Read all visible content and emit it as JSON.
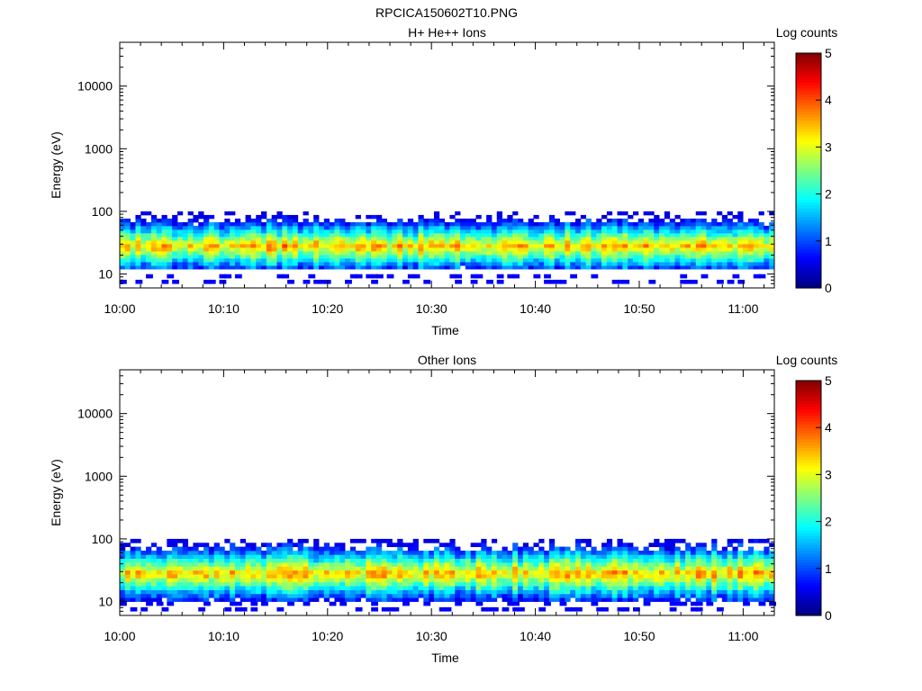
{
  "figure_title": "RPCICA150602T10.PNG",
  "colormap": [
    "#00007f",
    "#0000ff",
    "#007fff",
    "#00ffff",
    "#7fff7f",
    "#ffff00",
    "#ff7f00",
    "#ff0000",
    "#7f0000"
  ],
  "chart_data": [
    {
      "type": "heatmap",
      "title": "H+ He++ Ions",
      "xlabel": "Time",
      "ylabel": "Energy (eV)",
      "y_scale": "log",
      "ylim": [
        6,
        50000
      ],
      "x_ticks": [
        "10:00",
        "10:10",
        "10:20",
        "10:30",
        "10:40",
        "10:50",
        "11:00"
      ],
      "xlim": [
        "10:00",
        "11:03"
      ],
      "y_ticks": [
        "10",
        "100",
        "1000",
        "10000"
      ],
      "colorbar": {
        "label": "Log counts",
        "range": [
          0,
          5
        ],
        "ticks": [
          "0",
          "1",
          "2",
          "3",
          "4",
          "5"
        ]
      },
      "grid": false,
      "legend": "none",
      "signal_energy_range_eV": [
        12,
        100
      ],
      "peak_log_counts": 4.5,
      "peak_energy_eV": 28
    },
    {
      "type": "heatmap",
      "title": "Other Ions",
      "xlabel": "Time",
      "ylabel": "Energy (eV)",
      "y_scale": "log",
      "ylim": [
        6,
        50000
      ],
      "x_ticks": [
        "10:00",
        "10:10",
        "10:20",
        "10:30",
        "10:40",
        "10:50",
        "11:00"
      ],
      "xlim": [
        "10:00",
        "11:03"
      ],
      "y_ticks": [
        "10",
        "100",
        "1000",
        "10000"
      ],
      "colorbar": {
        "label": "Log counts",
        "range": [
          0,
          5
        ],
        "ticks": [
          "0",
          "1",
          "2",
          "3",
          "4",
          "5"
        ]
      },
      "grid": false,
      "legend": "none",
      "signal_energy_range_eV": [
        10,
        100
      ],
      "peak_log_counts": 4.5,
      "peak_energy_eV": 28
    }
  ]
}
